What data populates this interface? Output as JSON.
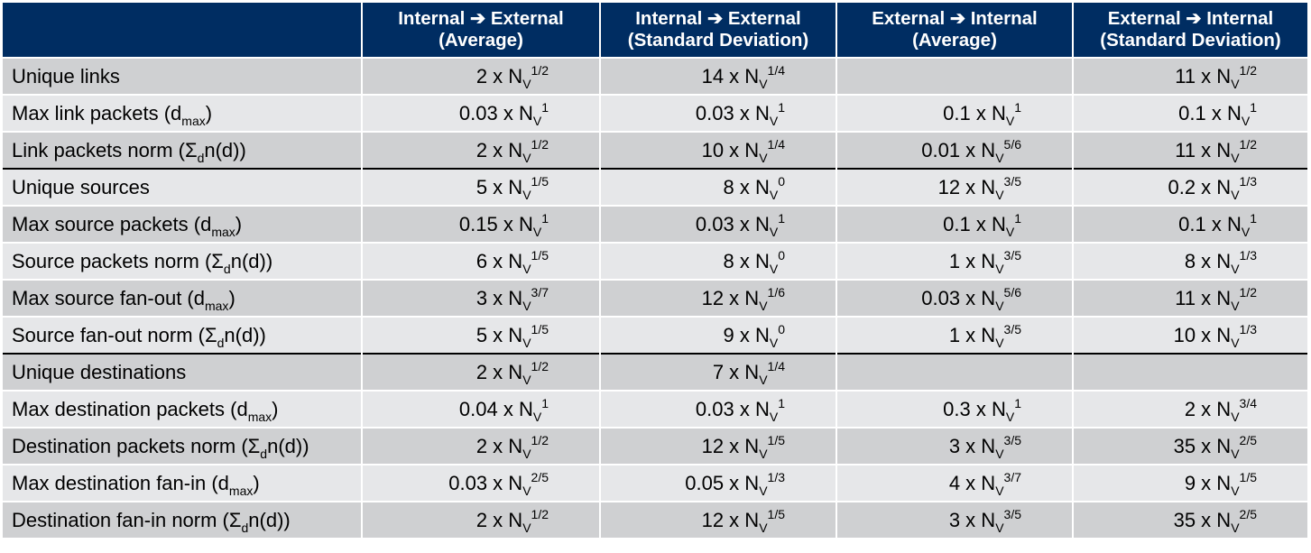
{
  "table": {
    "headers": [
      {
        "line1": "",
        "line2": ""
      },
      {
        "line1": "Internal ➔ External",
        "line2": "(Average)"
      },
      {
        "line1": "Internal ➔ External",
        "line2": "(Standard Deviation)"
      },
      {
        "line1": "External ➔ Internal",
        "line2": "(Average)"
      },
      {
        "line1": "External ➔ Internal",
        "line2": "(Standard Deviation)"
      }
    ],
    "group_start_rows": [
      3,
      8
    ],
    "rows": [
      {
        "label": {
          "text": "Unique links",
          "sub": "",
          "tail": ""
        },
        "cells": [
          {
            "coef": "2",
            "sub": "V",
            "exp": "1/2"
          },
          {
            "coef": "14",
            "sub": "V",
            "exp": "1/4"
          },
          null,
          {
            "coef": "11",
            "sub": "V",
            "exp": "1/2"
          }
        ]
      },
      {
        "label": {
          "text": "Max link packets (d",
          "sub": "max",
          "tail": ")"
        },
        "cells": [
          {
            "coef": "0.03",
            "sub": "V",
            "exp": "1"
          },
          {
            "coef": "0.03",
            "sub": "V",
            "exp": "1"
          },
          {
            "coef": "0.1",
            "sub": "V",
            "exp": "1"
          },
          {
            "coef": "0.1",
            "sub": "V",
            "exp": "1"
          }
        ]
      },
      {
        "label": {
          "text": "Link packets norm (Σ",
          "sub": "d",
          "tail": "n(d))"
        },
        "cells": [
          {
            "coef": "2",
            "sub": "V",
            "exp": "1/2"
          },
          {
            "coef": "10",
            "sub": "V",
            "exp": "1/4"
          },
          {
            "coef": "0.01",
            "sub": "V",
            "exp": "5/6"
          },
          {
            "coef": "11",
            "sub": "V",
            "exp": "1/2"
          }
        ]
      },
      {
        "label": {
          "text": "Unique sources",
          "sub": "",
          "tail": ""
        },
        "cells": [
          {
            "coef": "5",
            "sub": "V",
            "exp": "1/5"
          },
          {
            "coef": "8",
            "sub": "V",
            "exp": "0"
          },
          {
            "coef": "12",
            "sub": "V",
            "exp": "3/5"
          },
          {
            "coef": "0.2",
            "sub": "V",
            "exp": "1/3"
          }
        ]
      },
      {
        "label": {
          "text": "Max source packets (d",
          "sub": "max",
          "tail": ")"
        },
        "cells": [
          {
            "coef": "0.15",
            "sub": "V",
            "exp": "1"
          },
          {
            "coef": "0.03",
            "sub": "V",
            "exp": "1"
          },
          {
            "coef": "0.1",
            "sub": "V",
            "exp": "1"
          },
          {
            "coef": "0.1",
            "sub": "V",
            "exp": "1"
          }
        ]
      },
      {
        "label": {
          "text": "Source packets norm (Σ",
          "sub": "d",
          "tail": "n(d))"
        },
        "cells": [
          {
            "coef": "6",
            "sub": "V",
            "exp": "1/5"
          },
          {
            "coef": "8",
            "sub": "V",
            "exp": "0"
          },
          {
            "coef": "1",
            "sub": "V",
            "exp": "3/5"
          },
          {
            "coef": "8",
            "sub": "V",
            "exp": "1/3"
          }
        ]
      },
      {
        "label": {
          "text": "Max source fan-out (d",
          "sub": "max",
          "tail": ")"
        },
        "cells": [
          {
            "coef": "3",
            "sub": "V",
            "exp": "3/7"
          },
          {
            "coef": "12",
            "sub": "V",
            "exp": "1/6"
          },
          {
            "coef": "0.03",
            "sub": "V",
            "exp": "5/6"
          },
          {
            "coef": "11",
            "sub": "V",
            "exp": "1/2"
          }
        ]
      },
      {
        "label": {
          "text": "Source fan-out norm (Σ",
          "sub": "d",
          "tail": "n(d))"
        },
        "cells": [
          {
            "coef": "5",
            "sub": "V",
            "exp": "1/5"
          },
          {
            "coef": "9",
            "sub": "V",
            "exp": "0"
          },
          {
            "coef": "1",
            "sub": "V",
            "exp": "3/5"
          },
          {
            "coef": "10",
            "sub": "V",
            "exp": "1/3"
          }
        ]
      },
      {
        "label": {
          "text": "Unique destinations",
          "sub": "",
          "tail": ""
        },
        "cells": [
          {
            "coef": "2",
            "sub": "V",
            "exp": "1/2"
          },
          {
            "coef": "7",
            "sub": "V",
            "exp": "1/4"
          },
          null,
          null
        ]
      },
      {
        "label": {
          "text": "Max destination packets (d",
          "sub": "max",
          "tail": ")"
        },
        "cells": [
          {
            "coef": "0.04",
            "sub": "V",
            "exp": "1"
          },
          {
            "coef": "0.03",
            "sub": "V",
            "exp": "1"
          },
          {
            "coef": "0.3",
            "sub": "V",
            "exp": "1"
          },
          {
            "coef": "2",
            "sub": "V",
            "exp": "3/4"
          }
        ]
      },
      {
        "label": {
          "text": "Destination packets norm (Σ",
          "sub": "d",
          "tail": "n(d))"
        },
        "cells": [
          {
            "coef": "2",
            "sub": "V",
            "exp": "1/2"
          },
          {
            "coef": "12",
            "sub": "V",
            "exp": "1/5"
          },
          {
            "coef": "3",
            "sub": "V",
            "exp": "3/5"
          },
          {
            "coef": "35",
            "sub": "V",
            "exp": "2/5"
          }
        ]
      },
      {
        "label": {
          "text": "Max destination fan-in (d",
          "sub": "max",
          "tail": ")"
        },
        "cells": [
          {
            "coef": "0.03",
            "sub": "V",
            "exp": "2/5"
          },
          {
            "coef": "0.05",
            "sub": "V",
            "exp": "1/3"
          },
          {
            "coef": "4",
            "sub": "V",
            "exp": "3/7"
          },
          {
            "coef": "9",
            "sub": "V",
            "exp": "1/5"
          }
        ]
      },
      {
        "label": {
          "text": "Destination fan-in norm (Σ",
          "sub": "d",
          "tail": "n(d))"
        },
        "cells": [
          {
            "coef": "2",
            "sub": "V",
            "exp": "1/2"
          },
          {
            "coef": "12",
            "sub": "V",
            "exp": "1/5"
          },
          {
            "coef": "3",
            "sub": "V",
            "exp": "3/5"
          },
          {
            "coef": "35",
            "sub": "V",
            "exp": "2/5"
          }
        ]
      }
    ]
  }
}
